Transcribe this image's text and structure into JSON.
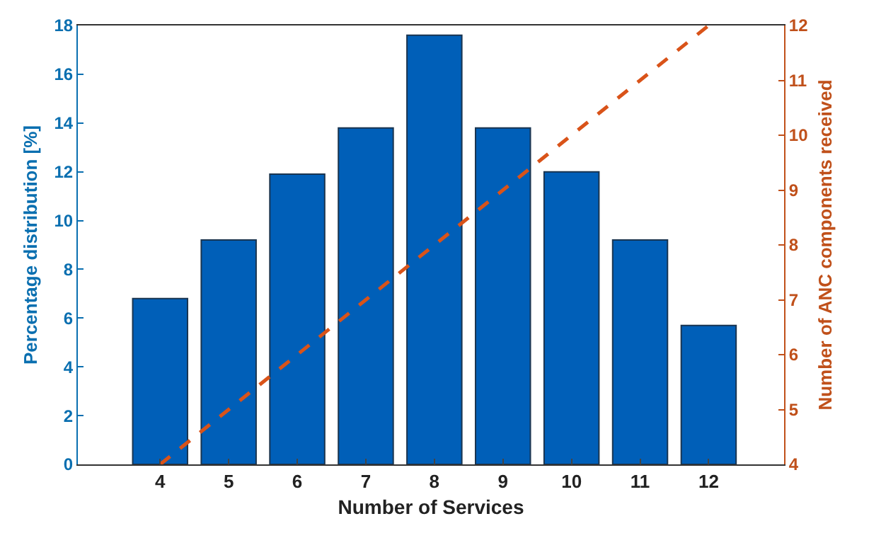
{
  "chart_data": {
    "type": "bar",
    "xlabel": "Number of Services",
    "ylabel": "Percentage distribution [%]",
    "y2label": "Number of ANC components received",
    "x": [
      4,
      5,
      6,
      7,
      8,
      9,
      10,
      11,
      12
    ],
    "series": [
      {
        "color": "#005fb8",
        "values": [
          6.8,
          9.2,
          11.9,
          13.8,
          17.6,
          13.8,
          12.0,
          9.2,
          5.7
        ]
      },
      {
        "type": "line",
        "axis": "y2",
        "color": "#d95319",
        "line_style": "dashed",
        "values": [
          4,
          5,
          6,
          7,
          8,
          9,
          10,
          11,
          12
        ]
      }
    ],
    "xlim": [
      2.8,
      13.1
    ],
    "xticks": [
      4,
      5,
      6,
      7,
      8,
      9,
      10,
      11,
      12
    ],
    "ylim": [
      0,
      18
    ],
    "yticks": [
      0,
      2,
      4,
      6,
      8,
      10,
      12,
      14,
      16,
      18
    ],
    "y2lim": [
      4,
      12
    ],
    "y2ticks": [
      4,
      5,
      6,
      7,
      8,
      9,
      10,
      11,
      12
    ],
    "grid": false,
    "legend": false
  }
}
